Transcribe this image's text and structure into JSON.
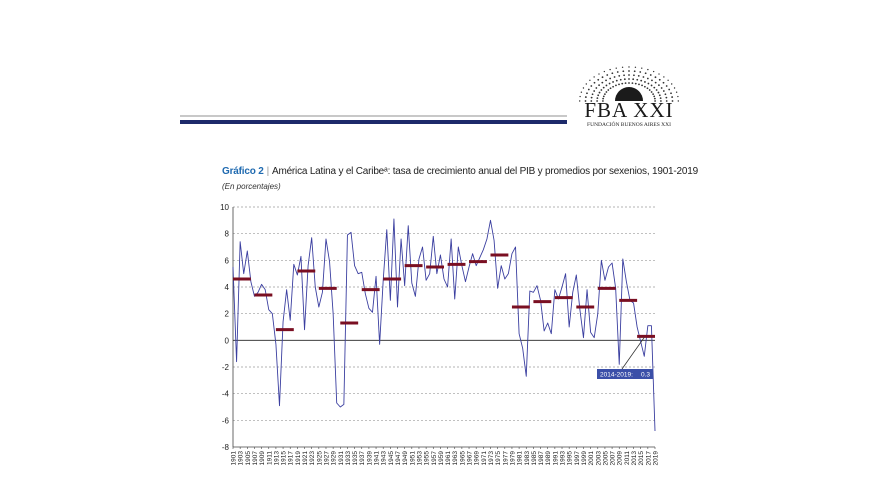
{
  "logo": {
    "name": "FBA XXI",
    "subtitle": "FUNDACIÓN BUENOS AIRES XXI"
  },
  "chart_data": {
    "type": "line",
    "label": "Gráfico 2",
    "title": "América Latina y el Caribeᵃ: tasa de crecimiento anual del PIB y promedios por sexenios, 1901-2019",
    "subtitle": "(En porcentajes)",
    "xlabel": "",
    "ylabel": "",
    "ylim": [
      -8,
      10
    ],
    "yticks": [
      -8,
      -6,
      -4,
      -2,
      0,
      2,
      4,
      6,
      8,
      10
    ],
    "grid": "horizontal dashed",
    "x_tick_labels": [
      "1901",
      "1903",
      "1905",
      "1907",
      "1909",
      "1911",
      "1913",
      "1915",
      "1917",
      "1919",
      "1921",
      "1923",
      "1925",
      "1927",
      "1929",
      "1931",
      "1933",
      "1935",
      "1937",
      "1939",
      "1941",
      "1943",
      "1945",
      "1947",
      "1949",
      "1951",
      "1953",
      "1955",
      "1957",
      "1959",
      "1961",
      "1963",
      "1965",
      "1967",
      "1969",
      "1971",
      "1973",
      "1975",
      "1977",
      "1979",
      "1981",
      "1983",
      "1985",
      "1987",
      "1989",
      "1991",
      "1993",
      "1995",
      "1997",
      "1999",
      "2001",
      "2003",
      "2005",
      "2007",
      "2009",
      "2011",
      "2013",
      "2015",
      "2017",
      "2019"
    ],
    "series": [
      {
        "kind": "line",
        "color": "#3b3fa0",
        "x": [
          1901,
          1902,
          1903,
          1904,
          1905,
          1906,
          1907,
          1908,
          1909,
          1910,
          1911,
          1912,
          1913,
          1914,
          1915,
          1916,
          1917,
          1918,
          1919,
          1920,
          1921,
          1922,
          1923,
          1924,
          1925,
          1926,
          1927,
          1928,
          1929,
          1930,
          1931,
          1932,
          1933,
          1934,
          1935,
          1936,
          1937,
          1938,
          1939,
          1940,
          1941,
          1942,
          1943,
          1944,
          1945,
          1946,
          1947,
          1948,
          1949,
          1950,
          1951,
          1952,
          1953,
          1954,
          1955,
          1956,
          1957,
          1958,
          1959,
          1960,
          1961,
          1962,
          1963,
          1964,
          1965,
          1966,
          1967,
          1968,
          1969,
          1970,
          1971,
          1972,
          1973,
          1974,
          1975,
          1976,
          1977,
          1978,
          1979,
          1980,
          1981,
          1982,
          1983,
          1984,
          1985,
          1986,
          1987,
          1988,
          1989,
          1990,
          1991,
          1992,
          1993,
          1994,
          1995,
          1996,
          1997,
          1998,
          1999,
          2000,
          2001,
          2002,
          2003,
          2004,
          2005,
          2006,
          2007,
          2008,
          2009,
          2010,
          2011,
          2012,
          2013,
          2014,
          2015,
          2016,
          2017,
          2018,
          2019
        ],
        "values": [
          5.5,
          -1.6,
          7.4,
          5.0,
          6.7,
          4.4,
          3.3,
          3.6,
          4.2,
          3.8,
          2.3,
          2.0,
          -0.3,
          -4.9,
          1.4,
          3.8,
          1.5,
          5.7,
          4.9,
          6.3,
          0.8,
          5.6,
          7.7,
          4.0,
          2.5,
          3.6,
          7.6,
          5.9,
          2.0,
          -4.7,
          -5.0,
          -4.8,
          7.9,
          8.1,
          5.6,
          5.0,
          5.1,
          3.5,
          2.4,
          2.1,
          4.8,
          -0.3,
          4.5,
          8.3,
          3.0,
          9.1,
          2.5,
          7.6,
          4.1,
          8.6,
          4.3,
          3.3,
          6.1,
          7.0,
          4.5,
          5.0,
          7.8,
          5.0,
          6.4,
          4.6,
          4.0,
          7.6,
          3.1,
          7.0,
          5.6,
          4.4,
          5.5,
          6.5,
          5.6,
          6.2,
          6.8,
          7.6,
          9.0,
          7.5,
          3.9,
          5.6,
          4.6,
          5.0,
          6.5,
          7.0,
          0.5,
          -0.6,
          -2.7,
          3.7,
          3.6,
          4.1,
          3.0,
          0.7,
          1.3,
          0.5,
          3.8,
          3.1,
          4.0,
          5.0,
          1.0,
          3.6,
          4.9,
          2.3,
          0.2,
          3.8,
          0.6,
          0.2,
          2.0,
          6.0,
          4.5,
          5.5,
          5.8,
          3.9,
          -1.8,
          6.1,
          4.4,
          3.0,
          2.8,
          1.0,
          -0.1,
          -1.2,
          1.1,
          1.1,
          -6.8
        ]
      },
      {
        "kind": "period-averages",
        "color": "#7a0f22",
        "segments": [
          {
            "from": 1901,
            "to": 1906,
            "value": 4.6
          },
          {
            "from": 1907,
            "to": 1912,
            "value": 3.4
          },
          {
            "from": 1913,
            "to": 1918,
            "value": 0.8
          },
          {
            "from": 1919,
            "to": 1924,
            "value": 5.2
          },
          {
            "from": 1925,
            "to": 1930,
            "value": 3.9
          },
          {
            "from": 1931,
            "to": 1936,
            "value": 1.3
          },
          {
            "from": 1937,
            "to": 1942,
            "value": 3.8
          },
          {
            "from": 1943,
            "to": 1948,
            "value": 4.6
          },
          {
            "from": 1949,
            "to": 1954,
            "value": 5.6
          },
          {
            "from": 1955,
            "to": 1960,
            "value": 5.5
          },
          {
            "from": 1961,
            "to": 1966,
            "value": 5.7
          },
          {
            "from": 1967,
            "to": 1972,
            "value": 5.9
          },
          {
            "from": 1973,
            "to": 1978,
            "value": 6.4
          },
          {
            "from": 1979,
            "to": 1984,
            "value": 2.5
          },
          {
            "from": 1985,
            "to": 1990,
            "value": 2.9
          },
          {
            "from": 1991,
            "to": 1996,
            "value": 3.2
          },
          {
            "from": 1997,
            "to": 2002,
            "value": 2.5
          },
          {
            "from": 2003,
            "to": 2008,
            "value": 3.9
          },
          {
            "from": 2009,
            "to": 2014,
            "value": 3.0
          },
          {
            "from": 2014,
            "to": 2019,
            "value": 0.3
          }
        ]
      }
    ],
    "annotation": {
      "text": "2014-2019:",
      "value_text": "0.3",
      "target_year": 2016,
      "target_value": 0.3,
      "box_color": "#3b4fa8"
    }
  }
}
